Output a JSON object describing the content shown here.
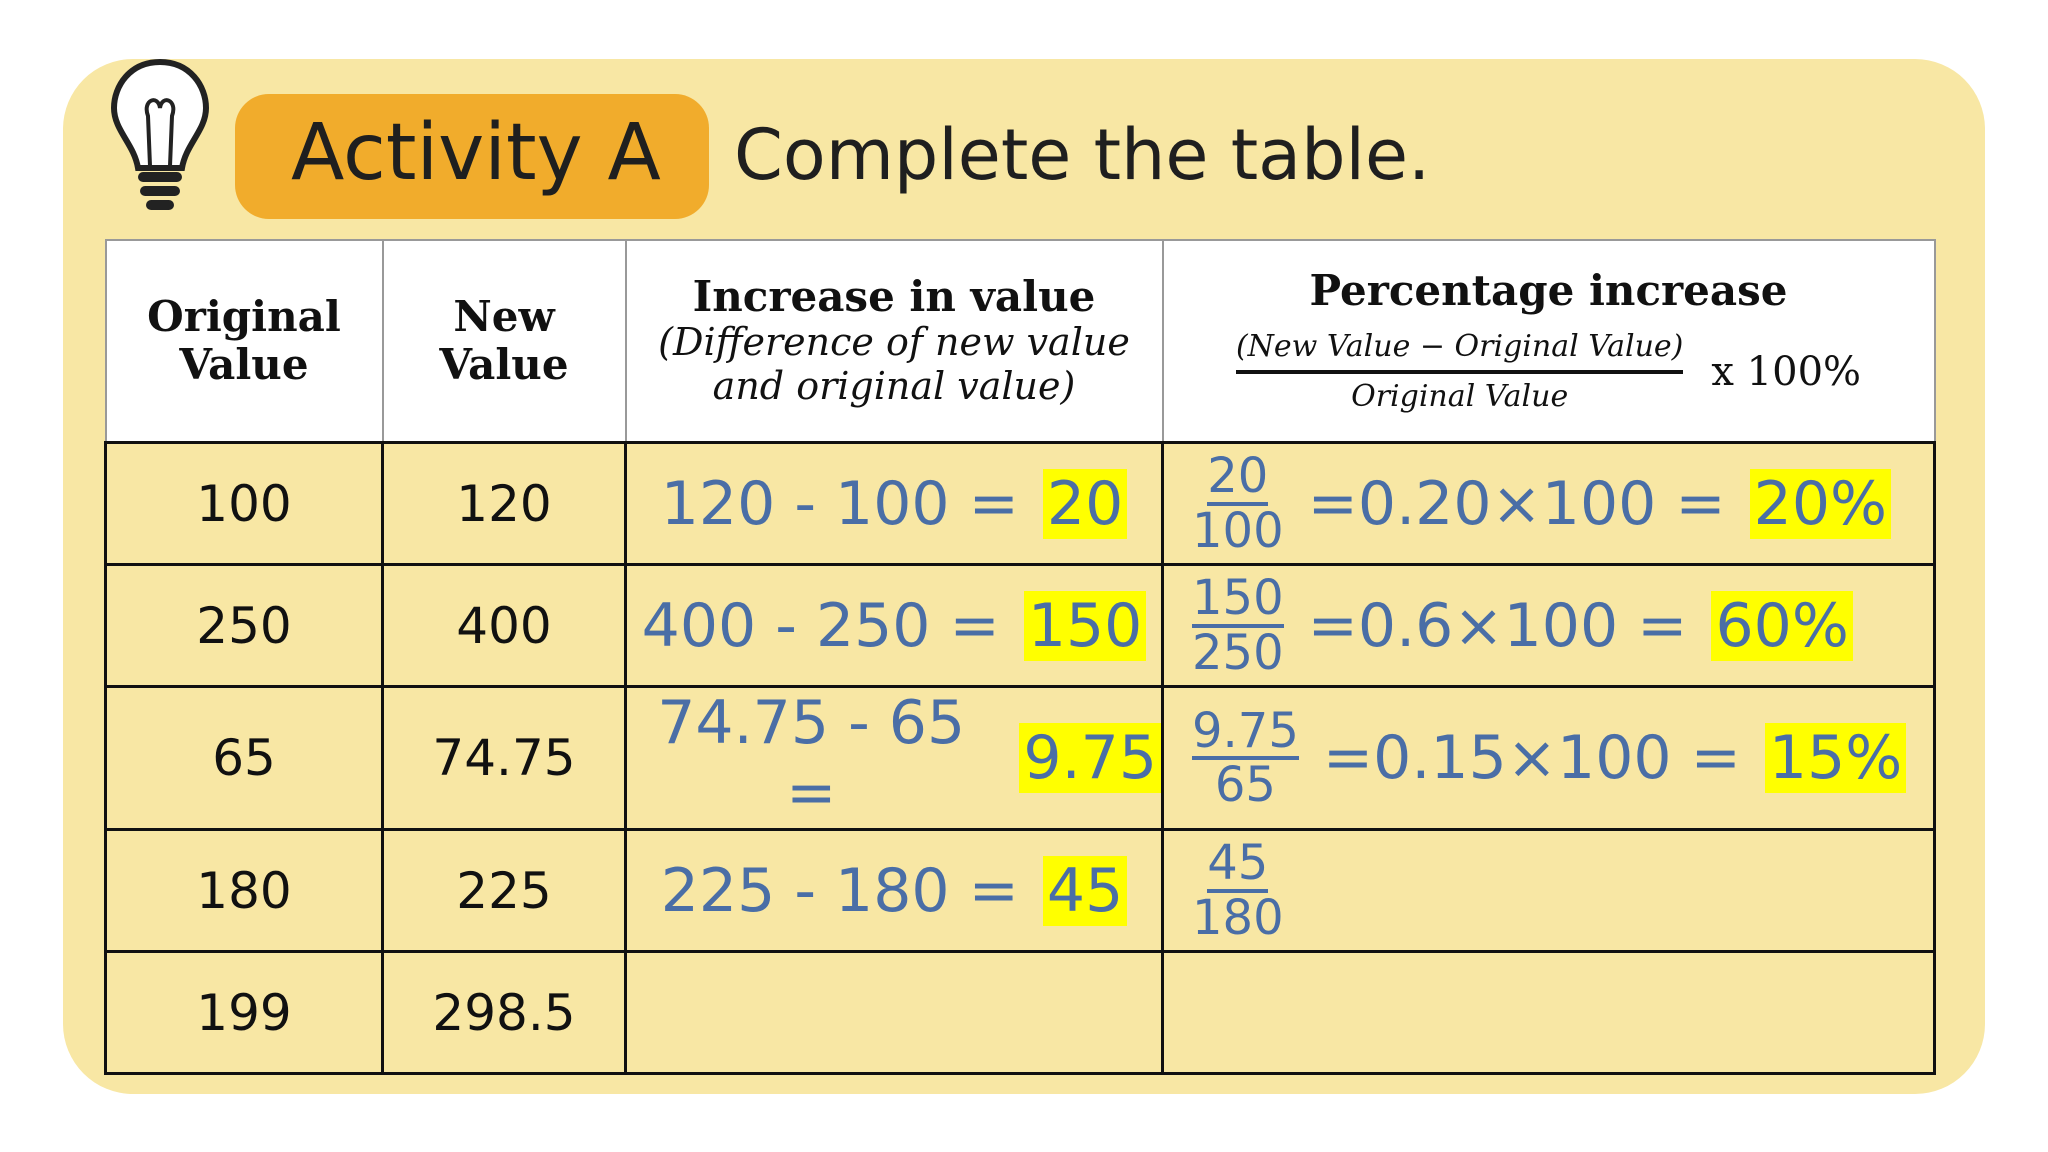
{
  "activity": {
    "badge": "Activity A",
    "instruction": "Complete the table."
  },
  "table": {
    "headers": [
      {
        "title": "Original Value"
      },
      {
        "title": "New Value"
      },
      {
        "title": "Increase in value",
        "subtitle": "(Difference of new value and original value)"
      },
      {
        "title": "Percentage increase",
        "numerator": "(New Value − Original Value)",
        "denominator": "Original Value",
        "multiplier": "x 100%"
      }
    ],
    "rows": [
      {
        "original": "100",
        "new": "120",
        "difference": "120 - 100 =",
        "increase": "20",
        "fraction_numerator": "20",
        "fraction_denominator": "100",
        "calculation": "=0.20×100 =",
        "percentage": "20%"
      },
      {
        "original": "250",
        "new": "400",
        "difference": "400 - 250 =",
        "increase": "150",
        "fraction_numerator": "150",
        "fraction_denominator": "250",
        "calculation": "=0.6×100 =",
        "percentage": "60%"
      },
      {
        "original": "65",
        "new": "74.75",
        "difference": "74.75 - 65 =",
        "increase": "9.75",
        "fraction_numerator": "9.75",
        "fraction_denominator": "65",
        "calculation": "=0.15×100 =",
        "percentage": "15%"
      },
      {
        "original": "180",
        "new": "225",
        "difference": "225 - 180 =",
        "increase": "45",
        "fraction_numerator": "45",
        "fraction_denominator": "180"
      },
      {
        "original": "199",
        "new": "298.5"
      }
    ]
  }
}
